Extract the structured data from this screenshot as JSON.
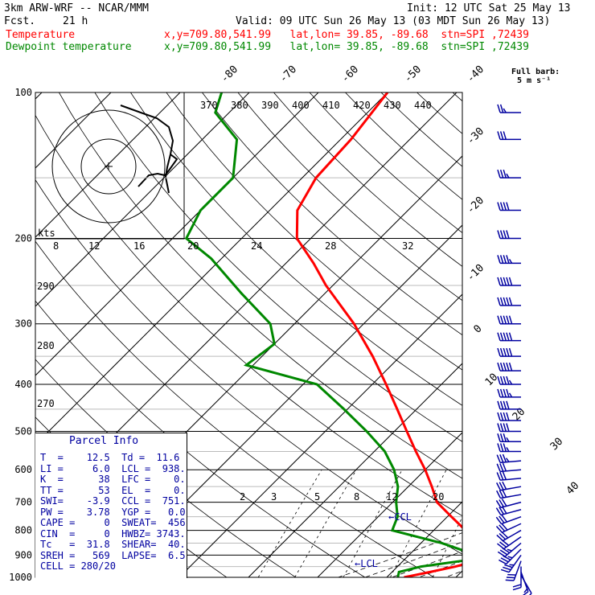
{
  "header": {
    "model": "3km ARW-WRF -- NCAR/MMM",
    "init": "Init: 12 UTC Sat 25 May 13",
    "fcst_label": "Fcst.",
    "fcst_value": "21 h",
    "valid": "Valid: 09 UTC Sun 26 May 13 (03 MDT Sun 26 May 13)",
    "temp_label": "Temperature",
    "temp_info": "x,y=709.80,541.99   lat,lon= 39.85, -89.68  stn=SPI ,72439",
    "dew_label": "Dewpoint temperature",
    "dew_info": "x,y=709.80,541.99   lat,lon= 39.85, -89.68  stn=SPI ,72439"
  },
  "colors": {
    "temperature": "#ff0000",
    "dewpoint": "#008800",
    "parcel_info": "#0000a0",
    "wind": "#0000a0"
  },
  "chart_data": {
    "type": "line",
    "pressure_ticks": [
      "100",
      "200",
      "300",
      "400",
      "500",
      "600",
      "700",
      "800",
      "900",
      "1000"
    ],
    "isotherm_labels": [
      "-80",
      "-70",
      "-60",
      "-50",
      "-40",
      "-30",
      "-20",
      "-10",
      "0",
      "10",
      "20",
      "30",
      "40"
    ],
    "theta_labels": [
      "370",
      "380",
      "390",
      "400",
      "410",
      "420",
      "430",
      "440"
    ],
    "theta_left_labels": [
      "290",
      "280",
      "270"
    ],
    "mixing_ratio_labels": [
      "2",
      "3",
      "5",
      "8",
      "12",
      "20"
    ],
    "hodo_labels": [
      "kts",
      "8",
      "12",
      "16",
      "20",
      "24",
      "28",
      "32"
    ],
    "full_barb_label": "Full barb:",
    "full_barb_value": "5 m s⁻¹",
    "series": [
      {
        "name": "Temperature",
        "points": [
          {
            "p": 1000,
            "t": 12.5
          },
          {
            "p": 975,
            "t": 15.5
          },
          {
            "p": 950,
            "t": 18.4
          },
          {
            "p": 925,
            "t": 20.6
          },
          {
            "p": 900,
            "t": 20.8
          },
          {
            "p": 850,
            "t": 18.6
          },
          {
            "p": 800,
            "t": 14.6
          },
          {
            "p": 750,
            "t": 10.6
          },
          {
            "p": 700,
            "t": 6.4
          },
          {
            "p": 650,
            "t": 3.4
          },
          {
            "p": 600,
            "t": 0.0
          },
          {
            "p": 550,
            "t": -4.0
          },
          {
            "p": 500,
            "t": -8.2
          },
          {
            "p": 450,
            "t": -12.8
          },
          {
            "p": 400,
            "t": -18.0
          },
          {
            "p": 350,
            "t": -24.0
          },
          {
            "p": 300,
            "t": -31.4
          },
          {
            "p": 250,
            "t": -41.0
          },
          {
            "p": 225,
            "t": -46.0
          },
          {
            "p": 200,
            "t": -52.0
          },
          {
            "p": 175,
            "t": -56.0
          },
          {
            "p": 150,
            "t": -58.0
          },
          {
            "p": 125,
            "t": -58.5
          },
          {
            "p": 100,
            "t": -60.0
          }
        ]
      },
      {
        "name": "Dewpoint temperature",
        "points": [
          {
            "p": 1000,
            "t": 11.6
          },
          {
            "p": 975,
            "t": 11.0
          },
          {
            "p": 950,
            "t": 13.4
          },
          {
            "p": 925,
            "t": 18.5
          },
          {
            "p": 900,
            "t": 19.8
          },
          {
            "p": 850,
            "t": 13.0
          },
          {
            "p": 800,
            "t": 4.0
          },
          {
            "p": 750,
            "t": 2.8
          },
          {
            "p": 700,
            "t": 0.5
          },
          {
            "p": 650,
            "t": -1.5
          },
          {
            "p": 600,
            "t": -4.5
          },
          {
            "p": 550,
            "t": -8.5
          },
          {
            "p": 500,
            "t": -14.0
          },
          {
            "p": 450,
            "t": -20.5
          },
          {
            "p": 400,
            "t": -28.0
          },
          {
            "p": 365,
            "t": -41.0
          },
          {
            "p": 330,
            "t": -40.0
          },
          {
            "p": 300,
            "t": -43.5
          },
          {
            "p": 260,
            "t": -52.0
          },
          {
            "p": 220,
            "t": -61.5
          },
          {
            "p": 200,
            "t": -68.0
          },
          {
            "p": 175,
            "t": -70.0
          },
          {
            "p": 150,
            "t": -70.0
          },
          {
            "p": 125,
            "t": -75.0
          },
          {
            "p": 110,
            "t": -82.0
          },
          {
            "p": 100,
            "t": -84.0
          }
        ]
      }
    ],
    "ccl_label": "←CCL",
    "lcl_label": "←LCL",
    "ccl_pressure": 751,
    "lcl_pressure": 938,
    "wind_barbs": [
      {
        "p": 990,
        "dir": 150,
        "spd": 5
      },
      {
        "p": 975,
        "dir": 160,
        "spd": 8
      },
      {
        "p": 950,
        "dir": 180,
        "spd": 12
      },
      {
        "p": 925,
        "dir": 200,
        "spd": 16
      },
      {
        "p": 900,
        "dir": 215,
        "spd": 18
      },
      {
        "p": 875,
        "dir": 225,
        "spd": 18
      },
      {
        "p": 850,
        "dir": 230,
        "spd": 18
      },
      {
        "p": 825,
        "dir": 235,
        "spd": 17
      },
      {
        "p": 800,
        "dir": 240,
        "spd": 16
      },
      {
        "p": 775,
        "dir": 245,
        "spd": 15
      },
      {
        "p": 750,
        "dir": 250,
        "spd": 15
      },
      {
        "p": 725,
        "dir": 255,
        "spd": 15
      },
      {
        "p": 700,
        "dir": 255,
        "spd": 15
      },
      {
        "p": 675,
        "dir": 260,
        "spd": 15
      },
      {
        "p": 650,
        "dir": 260,
        "spd": 16
      },
      {
        "p": 625,
        "dir": 265,
        "spd": 16
      },
      {
        "p": 600,
        "dir": 265,
        "spd": 17
      },
      {
        "p": 575,
        "dir": 265,
        "spd": 18
      },
      {
        "p": 550,
        "dir": 270,
        "spd": 18
      },
      {
        "p": 525,
        "dir": 270,
        "spd": 19
      },
      {
        "p": 500,
        "dir": 270,
        "spd": 20
      },
      {
        "p": 475,
        "dir": 270,
        "spd": 21
      },
      {
        "p": 450,
        "dir": 270,
        "spd": 22
      },
      {
        "p": 425,
        "dir": 270,
        "spd": 23
      },
      {
        "p": 400,
        "dir": 270,
        "spd": 24
      },
      {
        "p": 375,
        "dir": 270,
        "spd": 25
      },
      {
        "p": 350,
        "dir": 270,
        "spd": 25
      },
      {
        "p": 325,
        "dir": 270,
        "spd": 26
      },
      {
        "p": 300,
        "dir": 270,
        "spd": 27
      },
      {
        "p": 275,
        "dir": 270,
        "spd": 26
      },
      {
        "p": 250,
        "dir": 270,
        "spd": 25
      },
      {
        "p": 225,
        "dir": 270,
        "spd": 24
      },
      {
        "p": 200,
        "dir": 270,
        "spd": 22
      },
      {
        "p": 175,
        "dir": 270,
        "spd": 20
      },
      {
        "p": 150,
        "dir": 270,
        "spd": 18
      },
      {
        "p": 125,
        "dir": 270,
        "spd": 16
      },
      {
        "p": 110,
        "dir": 270,
        "spd": 14
      }
    ]
  },
  "parcel_info": {
    "title": "Parcel Info",
    "rows": [
      "T  =    12.5  Td =  11.6",
      "LI =     6.0  LCL =  938.",
      "K  =      38  LFC =    0.",
      "TT =      53  EL  =    0.",
      "SWI=    -3.9  CCL =  751.",
      "PW =    3.78  YGP =   0.0",
      "CAPE =     0  SWEAT=  456",
      "CIN  =     0  HWBZ= 3743.",
      "Tc   =  31.8  SHEAR=  40.",
      "SREH =   569  LAPSE=  6.5",
      "CELL = 280/20"
    ]
  }
}
